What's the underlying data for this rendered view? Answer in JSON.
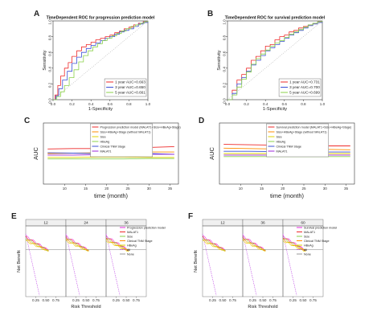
{
  "panel_labels": [
    "A",
    "B",
    "C",
    "D",
    "E",
    "F"
  ],
  "colors": {
    "red": "#ee2a2a",
    "blue": "#3b4fd6",
    "green": "#8bd14a",
    "orange": "#ff8c00",
    "yellow": "#e2d400",
    "purple": "#9b27d8",
    "magenta": "#e62ee0",
    "gray": "#999999",
    "violet": "#c14fe6"
  },
  "chart_data": [
    {
      "id": "A",
      "type": "line",
      "title": "TimeDependent ROC for progression prediction model",
      "xlabel": "1-Specificity",
      "ylabel": "Sensitivity",
      "xlim": [
        0,
        1
      ],
      "ylim": [
        0,
        1
      ],
      "xticks": [
        "0.0",
        "0.2",
        "0.4",
        "0.6",
        "0.8",
        "1.0"
      ],
      "yticks": [
        "0.0",
        "0.2",
        "0.4",
        "0.6",
        "0.8",
        "1.0"
      ],
      "legend_position": "bottom-right",
      "series": [
        {
          "name": "1 year   AUC=0.663",
          "color": "#ee2a2a",
          "x": [
            0,
            0.02,
            0.05,
            0.08,
            0.12,
            0.16,
            0.2,
            0.25,
            0.3,
            0.35,
            0.4,
            0.45,
            0.5,
            0.55,
            0.6,
            0.65,
            0.7,
            0.75,
            0.8,
            0.85,
            0.9,
            0.95,
            1
          ],
          "y": [
            0,
            0.06,
            0.18,
            0.3,
            0.4,
            0.47,
            0.55,
            0.62,
            0.67,
            0.7,
            0.73,
            0.76,
            0.78,
            0.8,
            0.82,
            0.85,
            0.87,
            0.9,
            0.92,
            0.95,
            0.97,
            0.99,
            1
          ]
        },
        {
          "name": "3 year   AUC=0.650",
          "color": "#3b4fd6",
          "x": [
            0,
            0.03,
            0.06,
            0.1,
            0.15,
            0.2,
            0.25,
            0.3,
            0.35,
            0.4,
            0.45,
            0.5,
            0.55,
            0.6,
            0.65,
            0.7,
            0.75,
            0.8,
            0.85,
            0.9,
            0.95,
            1
          ],
          "y": [
            0,
            0.05,
            0.14,
            0.25,
            0.36,
            0.46,
            0.54,
            0.6,
            0.65,
            0.69,
            0.72,
            0.75,
            0.78,
            0.8,
            0.83,
            0.86,
            0.88,
            0.9,
            0.93,
            0.96,
            0.98,
            1
          ]
        },
        {
          "name": "5 year   AUC=0.661",
          "color": "#8bd14a",
          "x": [
            0,
            0.04,
            0.08,
            0.12,
            0.17,
            0.22,
            0.27,
            0.32,
            0.37,
            0.42,
            0.47,
            0.52,
            0.57,
            0.62,
            0.67,
            0.72,
            0.77,
            0.82,
            0.87,
            0.92,
            0.96,
            1
          ],
          "y": [
            0,
            0.04,
            0.1,
            0.18,
            0.28,
            0.38,
            0.48,
            0.56,
            0.62,
            0.67,
            0.71,
            0.75,
            0.78,
            0.81,
            0.84,
            0.87,
            0.9,
            0.93,
            0.95,
            0.97,
            0.99,
            1
          ]
        }
      ]
    },
    {
      "id": "B",
      "type": "line",
      "title": "TimeDependent ROC for survival prediction model",
      "xlabel": "1-Specificity",
      "ylabel": "Sensitivity",
      "xlim": [
        0,
        1
      ],
      "ylim": [
        0,
        1
      ],
      "xticks": [
        "0.0",
        "0.2",
        "0.4",
        "0.6",
        "0.8",
        "1.0"
      ],
      "yticks": [
        "0.0",
        "0.2",
        "0.4",
        "0.6",
        "0.8",
        "1.0"
      ],
      "legend_position": "bottom-right",
      "series": [
        {
          "name": "1 year   AUC=0.731",
          "color": "#ee2a2a",
          "x": [
            0,
            0.05,
            0.1,
            0.15,
            0.2,
            0.25,
            0.3,
            0.35,
            0.4,
            0.45,
            0.5,
            0.55,
            0.6,
            0.65,
            0.7,
            0.75,
            0.8,
            0.85,
            0.9,
            0.95,
            1
          ],
          "y": [
            0,
            0.12,
            0.25,
            0.32,
            0.4,
            0.5,
            0.55,
            0.62,
            0.68,
            0.7,
            0.76,
            0.8,
            0.82,
            0.86,
            0.88,
            0.91,
            0.93,
            0.95,
            0.97,
            0.99,
            1
          ]
        },
        {
          "name": "3 year   AUC=0.700",
          "color": "#3b4fd6",
          "x": [
            0,
            0.05,
            0.1,
            0.15,
            0.2,
            0.25,
            0.3,
            0.35,
            0.4,
            0.45,
            0.5,
            0.55,
            0.6,
            0.65,
            0.7,
            0.75,
            0.8,
            0.85,
            0.9,
            0.95,
            1
          ],
          "y": [
            0,
            0.08,
            0.2,
            0.28,
            0.36,
            0.44,
            0.5,
            0.56,
            0.62,
            0.66,
            0.7,
            0.74,
            0.78,
            0.82,
            0.85,
            0.88,
            0.91,
            0.94,
            0.96,
            0.98,
            1
          ]
        },
        {
          "name": "5 year   AUC=0.699",
          "color": "#8bd14a",
          "x": [
            0,
            0.05,
            0.1,
            0.15,
            0.2,
            0.25,
            0.3,
            0.35,
            0.4,
            0.45,
            0.5,
            0.55,
            0.6,
            0.65,
            0.7,
            0.75,
            0.8,
            0.85,
            0.9,
            0.95,
            1
          ],
          "y": [
            0,
            0.06,
            0.16,
            0.26,
            0.35,
            0.45,
            0.52,
            0.58,
            0.63,
            0.68,
            0.72,
            0.75,
            0.79,
            0.83,
            0.86,
            0.89,
            0.92,
            0.95,
            0.97,
            0.99,
            1
          ]
        }
      ]
    },
    {
      "id": "C",
      "type": "line",
      "title": "",
      "xlabel": "time (month)",
      "ylabel": "AUC",
      "xlim": [
        5,
        37
      ],
      "ylim": [
        0.2,
        1.0
      ],
      "xticks": [
        "10",
        "15",
        "20",
        "25",
        "30",
        "35"
      ],
      "yticks": [],
      "legend_position": "top-right",
      "x": [
        6,
        12,
        18,
        24,
        30,
        36
      ],
      "series": [
        {
          "name": "Progression prediction model (MALAT1+Size+HBeAg+Stage)",
          "color": "#ee2a2a",
          "values": [
            0.66,
            0.665,
            0.665,
            0.67,
            0.68,
            0.69
          ]
        },
        {
          "name": "Size+HBeAg+Stage (without MALAT1)",
          "color": "#ff8c00",
          "values": [
            0.6,
            0.605,
            0.61,
            0.615,
            0.62,
            0.62
          ]
        },
        {
          "name": "Size",
          "color": "#e2d400",
          "values": [
            0.55,
            0.55,
            0.555,
            0.555,
            0.55,
            0.55
          ]
        },
        {
          "name": "HBeAg",
          "color": "#8bd14a",
          "values": [
            0.53,
            0.53,
            0.53,
            0.53,
            0.535,
            0.535
          ]
        },
        {
          "name": "Clinical TNM Stage",
          "color": "#3b4fd6",
          "values": [
            0.61,
            0.605,
            0.6,
            0.6,
            0.6,
            0.59
          ]
        },
        {
          "name": "MALAT1",
          "color": "#9b27d8",
          "values": [
            0.58,
            0.58,
            0.585,
            0.59,
            0.59,
            0.59
          ]
        }
      ]
    },
    {
      "id": "D",
      "type": "line",
      "title": "",
      "xlabel": "time (month)",
      "ylabel": "AUC",
      "xlim": [
        5,
        37
      ],
      "ylim": [
        0.2,
        1.0
      ],
      "xticks": [
        "10",
        "15",
        "20",
        "25",
        "30",
        "35"
      ],
      "yticks": [],
      "legend_position": "top-right",
      "x": [
        6,
        12,
        18,
        24,
        30,
        36
      ],
      "series": [
        {
          "name": "Survival prediction model (MALAT1+Size+HBeAg+Stage)",
          "color": "#ee2a2a",
          "values": [
            0.72,
            0.715,
            0.71,
            0.705,
            0.7,
            0.7
          ]
        },
        {
          "name": "Size+HBeAg+Stage (without MALAT1)",
          "color": "#ff8c00",
          "values": [
            0.67,
            0.665,
            0.66,
            0.66,
            0.655,
            0.65
          ]
        },
        {
          "name": "Size",
          "color": "#e2d400",
          "values": [
            0.6,
            0.6,
            0.6,
            0.6,
            0.6,
            0.6
          ]
        },
        {
          "name": "HBeAg",
          "color": "#8bd14a",
          "values": [
            0.56,
            0.56,
            0.56,
            0.56,
            0.56,
            0.56
          ]
        },
        {
          "name": "Clinical TNM Stage",
          "color": "#3b4fd6",
          "values": [
            0.63,
            0.63,
            0.625,
            0.62,
            0.62,
            0.62
          ]
        },
        {
          "name": "MALAT1",
          "color": "#9b27d8",
          "values": [
            0.58,
            0.58,
            0.58,
            0.58,
            0.58,
            0.58
          ]
        }
      ]
    },
    {
      "id": "E",
      "type": "line",
      "title": "",
      "xlabel": "Risk Threshold",
      "ylabel": "Net Benefit",
      "facets": [
        "12",
        "24",
        "36"
      ],
      "xlim": [
        0,
        1
      ],
      "ylim": [
        -0.6,
        0.3
      ],
      "xticks": [
        "0.25",
        "0.50",
        "0.75"
      ],
      "legend_position": "right",
      "series": [
        {
          "name": "Progression prediction model",
          "color": "#e62ee0"
        },
        {
          "name": "MALAT1",
          "color": "#ee2a2a"
        },
        {
          "name": "Size",
          "color": "#8bd14a"
        },
        {
          "name": "Clinical TNM Stage",
          "color": "#ff8c00"
        },
        {
          "name": "HBeAg",
          "color": "#e2d400"
        },
        {
          "name": "All",
          "color": "#c14fe6"
        },
        {
          "name": "None",
          "color": "#999999"
        }
      ]
    },
    {
      "id": "F",
      "type": "line",
      "title": "",
      "xlabel": "Risk Threshold",
      "ylabel": "Net Benefit",
      "facets": [
        "12",
        "36",
        "60"
      ],
      "xlim": [
        0,
        1
      ],
      "ylim": [
        -0.6,
        0.3
      ],
      "xticks": [
        "0.25",
        "0.50",
        "0.75"
      ],
      "legend_position": "right",
      "series": [
        {
          "name": "Survival prediction model",
          "color": "#e62ee0"
        },
        {
          "name": "MALAT1",
          "color": "#ee2a2a"
        },
        {
          "name": "Size",
          "color": "#8bd14a"
        },
        {
          "name": "Clinical TNM Stage",
          "color": "#ff8c00"
        },
        {
          "name": "HBeAg",
          "color": "#e2d400"
        },
        {
          "name": "All",
          "color": "#c14fe6"
        },
        {
          "name": "None",
          "color": "#999999"
        }
      ]
    }
  ]
}
